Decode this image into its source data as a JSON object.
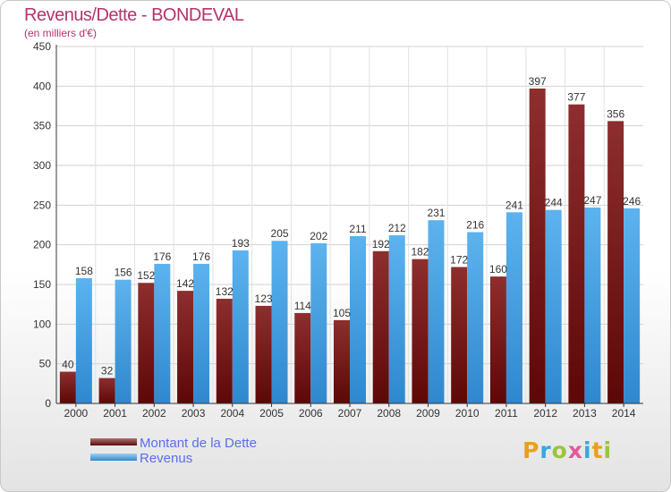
{
  "chart_data": {
    "type": "bar",
    "title": "Revenus/Dette - BONDEVAL",
    "subtitle": "(en milliers d'€)",
    "categories": [
      "2000",
      "2001",
      "2002",
      "2003",
      "2004",
      "2005",
      "2006",
      "2007",
      "2008",
      "2009",
      "2010",
      "2011",
      "2012",
      "2013",
      "2014"
    ],
    "series": [
      {
        "name": "Montant de la Dette",
        "color": "#7a1a1a",
        "values": [
          40,
          32,
          152,
          142,
          132,
          123,
          114,
          105,
          192,
          182,
          172,
          160,
          397,
          377,
          356
        ]
      },
      {
        "name": "Revenus",
        "color": "#4aa3e6",
        "values": [
          158,
          156,
          176,
          176,
          193,
          205,
          202,
          211,
          212,
          231,
          216,
          241,
          244,
          247,
          246
        ]
      }
    ],
    "ylim": [
      0,
      450
    ],
    "yticks": [
      0,
      50,
      100,
      150,
      200,
      250,
      300,
      350,
      400,
      450
    ],
    "grid": true,
    "legend": "bottom-left"
  },
  "legend": {
    "dette_label": "Montant de la Dette",
    "revenus_label": "Revenus"
  },
  "logo": {
    "letters": [
      "P",
      "r",
      "o",
      "x",
      "i",
      "t",
      "i"
    ],
    "colors": [
      "#e8a020",
      "#3aa7e0",
      "#9ac43c",
      "#e05a9a",
      "#3aa7e0",
      "#e8a020",
      "#9ac43c"
    ]
  }
}
